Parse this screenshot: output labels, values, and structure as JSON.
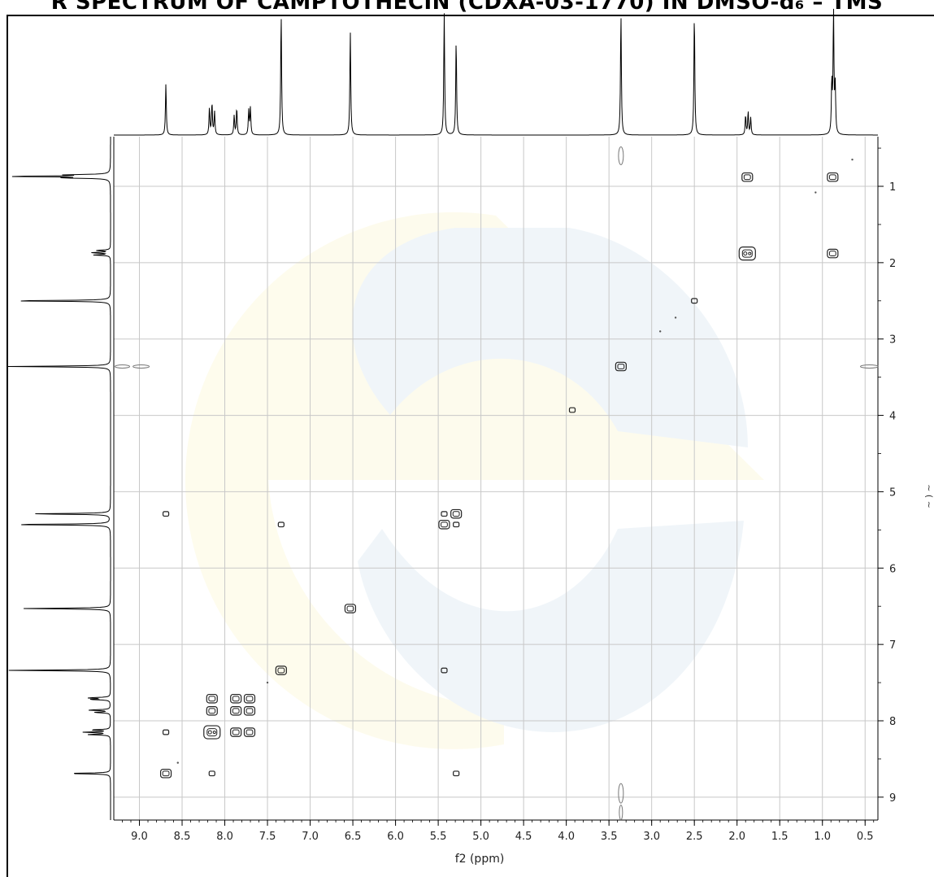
{
  "title": "R SPECTRUM OF CAMPTOTHECIN (CDXA-03-1770) IN DMSO-d₆ – TMS",
  "chart_data": {
    "type": "scatter",
    "title": "R SPECTRUM OF CAMPTOTHECIN (CDXA-03-1770) IN DMSO-d₆ – TMS",
    "xlabel": "f2 (ppm)",
    "ylabel": "",
    "xlim": [
      9.3,
      0.35
    ],
    "ylim": [
      0.35,
      9.3
    ],
    "x_ticks": [
      "9.0",
      "8.5",
      "8.0",
      "7.5",
      "7.0",
      "6.5",
      "6.0",
      "5.5",
      "5.0",
      "4.5",
      "4.0",
      "3.5",
      "3.0",
      "2.5",
      "2.0",
      "1.5",
      "1.0",
      "0.5"
    ],
    "y_ticks": [
      "1",
      "2",
      "3",
      "4",
      "5",
      "6",
      "7",
      "8",
      "9"
    ],
    "grid": true,
    "peaks_1d": [
      {
        "ppm": 8.69,
        "height": 0.42
      },
      {
        "ppm": 8.18,
        "height": 0.22
      },
      {
        "ppm": 8.15,
        "height": 0.26
      },
      {
        "ppm": 8.12,
        "height": 0.19
      },
      {
        "ppm": 7.89,
        "height": 0.16
      },
      {
        "ppm": 7.86,
        "height": 0.22
      },
      {
        "ppm": 7.72,
        "height": 0.2
      },
      {
        "ppm": 7.7,
        "height": 0.22
      },
      {
        "ppm": 7.34,
        "height": 1.0
      },
      {
        "ppm": 6.53,
        "height": 0.85
      },
      {
        "ppm": 5.43,
        "height": 1.0
      },
      {
        "ppm": 5.29,
        "height": 0.78
      },
      {
        "ppm": 3.36,
        "height": 1.0
      },
      {
        "ppm": 2.5,
        "height": 1.0
      },
      {
        "ppm": 1.9,
        "height": 0.16
      },
      {
        "ppm": 1.87,
        "height": 0.19
      },
      {
        "ppm": 1.84,
        "height": 0.14
      },
      {
        "ppm": 0.89,
        "height": 0.42
      },
      {
        "ppm": 0.87,
        "height": 1.0
      },
      {
        "ppm": 0.85,
        "height": 0.38
      }
    ],
    "cross_peaks": [
      {
        "x": 1.88,
        "y": 0.88,
        "size": 2
      },
      {
        "x": 0.88,
        "y": 0.88,
        "size": 2
      },
      {
        "x": 1.88,
        "y": 1.88,
        "size": 3
      },
      {
        "x": 0.88,
        "y": 1.88,
        "size": 2
      },
      {
        "x": 2.5,
        "y": 2.5,
        "size": 1
      },
      {
        "x": 3.36,
        "y": 3.36,
        "size": 2
      },
      {
        "x": 3.93,
        "y": 3.93,
        "size": 1
      },
      {
        "x": 8.69,
        "y": 5.29,
        "size": 1
      },
      {
        "x": 5.43,
        "y": 5.29,
        "size": 1
      },
      {
        "x": 5.29,
        "y": 5.29,
        "size": 2
      },
      {
        "x": 7.34,
        "y": 5.43,
        "size": 1
      },
      {
        "x": 5.43,
        "y": 5.43,
        "size": 2
      },
      {
        "x": 5.29,
        "y": 5.43,
        "size": 1
      },
      {
        "x": 6.53,
        "y": 6.53,
        "size": 2
      },
      {
        "x": 7.34,
        "y": 7.34,
        "size": 2
      },
      {
        "x": 5.43,
        "y": 7.34,
        "size": 1
      },
      {
        "x": 8.15,
        "y": 7.71,
        "size": 2
      },
      {
        "x": 7.87,
        "y": 7.71,
        "size": 2
      },
      {
        "x": 7.71,
        "y": 7.71,
        "size": 2
      },
      {
        "x": 8.15,
        "y": 7.87,
        "size": 2
      },
      {
        "x": 7.87,
        "y": 7.87,
        "size": 2
      },
      {
        "x": 7.71,
        "y": 7.87,
        "size": 2
      },
      {
        "x": 8.69,
        "y": 8.15,
        "size": 1
      },
      {
        "x": 8.15,
        "y": 8.15,
        "size": 3
      },
      {
        "x": 7.87,
        "y": 8.15,
        "size": 2
      },
      {
        "x": 7.71,
        "y": 8.15,
        "size": 2
      },
      {
        "x": 8.69,
        "y": 8.69,
        "size": 2
      },
      {
        "x": 8.15,
        "y": 8.69,
        "size": 1
      },
      {
        "x": 5.29,
        "y": 8.69,
        "size": 1
      },
      {
        "x": 2.72,
        "y": 2.72,
        "size": 0
      },
      {
        "x": 2.9,
        "y": 2.9,
        "size": 0
      },
      {
        "x": 1.08,
        "y": 1.08,
        "size": 0
      },
      {
        "x": 0.65,
        "y": 0.65,
        "size": 0
      },
      {
        "x": 7.5,
        "y": 7.5,
        "size": 0
      },
      {
        "x": 8.55,
        "y": 8.55,
        "size": 0
      }
    ]
  }
}
